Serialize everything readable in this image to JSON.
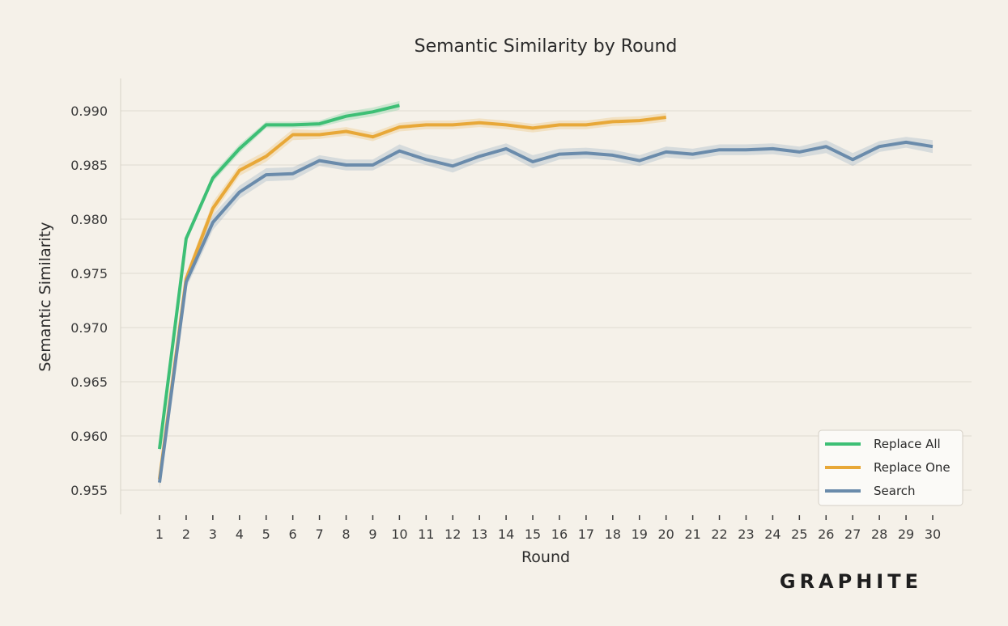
{
  "brand": {
    "logo_text": "GRAPHITE"
  },
  "colors": {
    "background": "#f5f1e9",
    "grid": "#e0dbd1",
    "replace_all": "#3dbf75",
    "replace_one": "#e8a838",
    "search": "#6a8bab"
  },
  "chart_data": {
    "type": "line",
    "title": "Semantic Similarity by Round",
    "xlabel": "Round",
    "ylabel": "Semantic Similarity",
    "xlim": [
      0,
      31
    ],
    "ylim": [
      0.9529,
      0.9927
    ],
    "yticks": [
      0.955,
      0.96,
      0.965,
      0.97,
      0.975,
      0.98,
      0.985,
      0.99
    ],
    "ytick_labels": [
      "0.955",
      "0.960",
      "0.965",
      "0.970",
      "0.975",
      "0.980",
      "0.985",
      "0.990"
    ],
    "xticks": [
      1,
      2,
      3,
      4,
      5,
      6,
      7,
      8,
      9,
      10,
      11,
      12,
      13,
      14,
      15,
      16,
      17,
      18,
      19,
      20,
      21,
      22,
      23,
      24,
      25,
      26,
      27,
      28,
      29,
      30
    ],
    "xtick_labels": [
      "1",
      "2",
      "3",
      "4",
      "5",
      "6",
      "7",
      "8",
      "9",
      "10",
      "11",
      "12",
      "13",
      "14",
      "15",
      "16",
      "17",
      "18",
      "19",
      "20",
      "21",
      "22",
      "23",
      "24",
      "25",
      "26",
      "27",
      "28",
      "29",
      "30"
    ],
    "grid": "horizontal",
    "legend_position": "bottom-right",
    "series": [
      {
        "name": "Replace All",
        "color": "#3dbf75",
        "x": [
          1,
          2,
          3,
          4,
          5,
          6,
          7,
          8,
          9,
          10
        ],
        "values": [
          0.9588,
          0.9782,
          0.9838,
          0.9865,
          0.9887,
          0.9887,
          0.9888,
          0.9895,
          0.9899,
          0.9905
        ],
        "ci_halfwidth": [
          0.0003,
          0.0003,
          0.0004,
          0.0004,
          0.0003,
          0.0003,
          0.0003,
          0.0004,
          0.0004,
          0.0004
        ]
      },
      {
        "name": "Replace One",
        "color": "#e8a838",
        "x": [
          1,
          2,
          3,
          4,
          5,
          6,
          7,
          8,
          9,
          10,
          11,
          12,
          13,
          14,
          15,
          16,
          17,
          18,
          19,
          20
        ],
        "values": [
          0.956,
          0.9745,
          0.981,
          0.9845,
          0.9858,
          0.9878,
          0.9878,
          0.9881,
          0.9876,
          0.9885,
          0.9887,
          0.9887,
          0.9889,
          0.9887,
          0.9884,
          0.9887,
          0.9887,
          0.989,
          0.9891,
          0.9894
        ],
        "ci_halfwidth": [
          0.0008,
          0.0005,
          0.0006,
          0.0005,
          0.0005,
          0.0005,
          0.0004,
          0.0004,
          0.0004,
          0.0004,
          0.0004,
          0.0004,
          0.0004,
          0.0004,
          0.0004,
          0.0004,
          0.0004,
          0.0004,
          0.0004,
          0.0004
        ]
      },
      {
        "name": "Search",
        "color": "#6a8bab",
        "x": [
          1,
          2,
          3,
          4,
          5,
          6,
          7,
          8,
          9,
          10,
          11,
          12,
          13,
          14,
          15,
          16,
          17,
          18,
          19,
          20,
          21,
          22,
          23,
          24,
          25,
          26,
          27,
          28,
          29,
          30
        ],
        "values": [
          0.9557,
          0.9742,
          0.9797,
          0.9825,
          0.9841,
          0.9842,
          0.9854,
          0.985,
          0.985,
          0.9863,
          0.9855,
          0.9849,
          0.9858,
          0.9865,
          0.9853,
          0.986,
          0.9861,
          0.9859,
          0.9854,
          0.9862,
          0.986,
          0.9864,
          0.9864,
          0.9865,
          0.9862,
          0.9867,
          0.9855,
          0.9867,
          0.9871,
          0.9867
        ],
        "ci_halfwidth": [
          0.0006,
          0.0006,
          0.0007,
          0.0006,
          0.0006,
          0.0006,
          0.0005,
          0.0005,
          0.0005,
          0.0006,
          0.0005,
          0.0006,
          0.0005,
          0.0005,
          0.0006,
          0.0005,
          0.0005,
          0.0005,
          0.0005,
          0.0005,
          0.0005,
          0.0005,
          0.0005,
          0.0005,
          0.0005,
          0.0006,
          0.0006,
          0.0005,
          0.0005,
          0.0006
        ]
      }
    ]
  }
}
